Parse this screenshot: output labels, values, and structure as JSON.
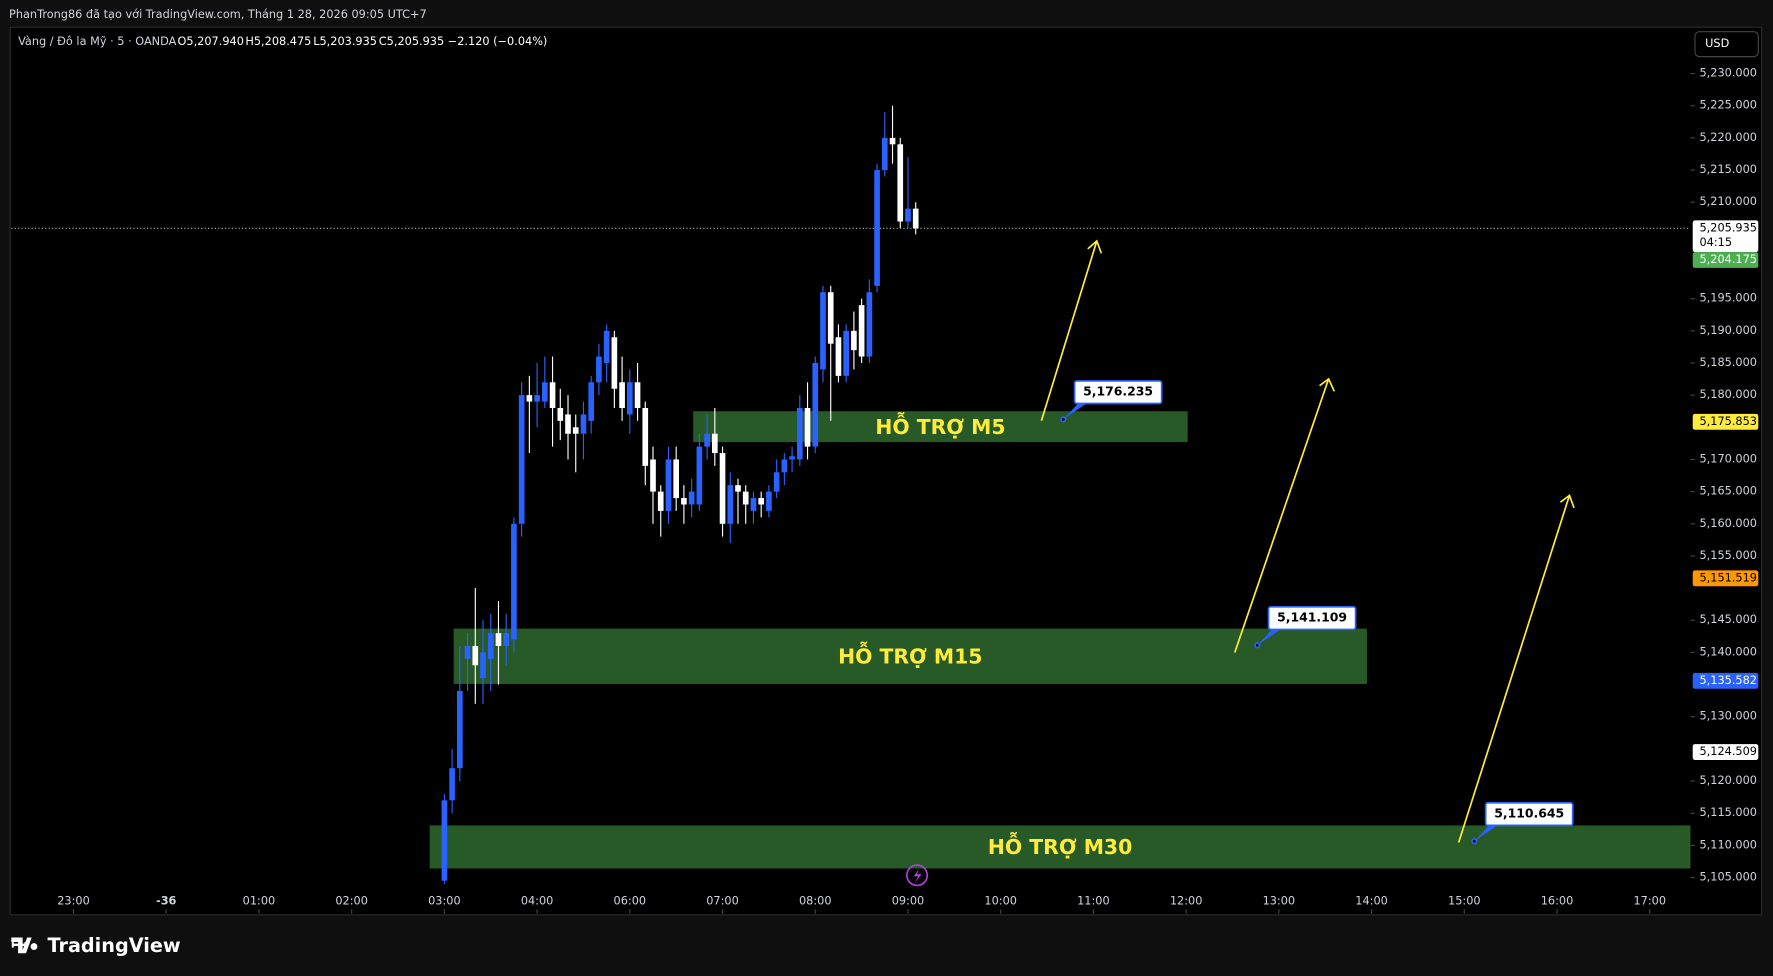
{
  "header": {
    "credit": "PhanTrong86 đã tạo với TradingView.com, Tháng 1 28, 2026 09:05 UTC+7",
    "symbol": "Vàng / Đô la Mỹ · 5 · OANDA",
    "open": "O5,207.940",
    "high": "H5,208.475",
    "low": "L5,203.935",
    "close": "C5,205.935",
    "change": "−2.120 (−0.04%)",
    "currency": "USD",
    "brand": "TradingView"
  },
  "chart_data": {
    "type": "candlestick",
    "x": [
      0,
      1,
      2,
      3,
      4,
      5,
      6,
      7,
      8,
      9,
      10,
      11,
      12,
      13,
      14,
      15,
      16,
      17,
      18,
      19,
      20,
      21,
      22,
      23,
      24,
      25,
      26,
      27,
      28,
      29,
      30,
      31,
      32,
      33,
      34,
      35,
      36,
      37,
      38,
      39,
      40,
      41,
      42,
      43,
      44,
      45,
      46,
      47,
      48,
      49,
      50,
      51,
      52,
      53,
      54,
      55,
      56,
      57,
      58,
      59,
      60,
      61
    ],
    "open": [
      5104.5,
      5117,
      5122,
      5139,
      5141,
      5136,
      5139,
      5143,
      5141,
      5142,
      5160,
      5180,
      5179,
      5179,
      5182,
      5178,
      5177,
      5175,
      5174,
      5176,
      5182,
      5185,
      5189,
      5182,
      5177,
      5182,
      5178,
      5170,
      5165,
      5162,
      5170,
      5164,
      5163,
      5163,
      5172,
      5174,
      5171,
      5160,
      5166,
      5165,
      5162,
      5164,
      5162,
      5165,
      5168,
      5170,
      5170,
      5178,
      5172,
      5184,
      5196,
      5189,
      5183,
      5190,
      5194,
      5186,
      5197,
      5215,
      5220,
      5219,
      5207,
      5209
    ],
    "high": [
      5118,
      5125,
      5141,
      5143,
      5150,
      5145,
      5146,
      5148,
      5146,
      5161,
      5182,
      5183,
      5185,
      5186,
      5186,
      5181,
      5180,
      5177,
      5179,
      5183,
      5188,
      5191,
      5190,
      5186,
      5184,
      5185,
      5179,
      5172,
      5166,
      5172,
      5172,
      5166,
      5167,
      5174,
      5177,
      5178,
      5172,
      5168,
      5167,
      5166,
      5165,
      5165,
      5166,
      5170,
      5171,
      5172,
      5180,
      5182,
      5186,
      5197,
      5197,
      5191,
      5191,
      5193,
      5195,
      5198,
      5216,
      5224,
      5225,
      5220,
      5217,
      5210
    ],
    "low": [
      5104,
      5115,
      5120,
      5134,
      5132,
      5132,
      5134,
      5135,
      5138,
      5140,
      5158,
      5171,
      5175,
      5178,
      5172,
      5173,
      5170,
      5168,
      5170,
      5174,
      5180,
      5182,
      5178,
      5176,
      5174,
      5176,
      5166,
      5160,
      5158,
      5160,
      5162,
      5160,
      5161,
      5162,
      5170,
      5169,
      5158,
      5157,
      5160,
      5160,
      5160,
      5161,
      5161,
      5164,
      5166,
      5168,
      5169,
      5170,
      5171,
      5182,
      5176,
      5182,
      5182,
      5184,
      5185,
      5185,
      5196,
      5214,
      5216,
      5206,
      5206,
      5205
    ],
    "close": [
      5117,
      5122,
      5134,
      5141,
      5138,
      5140,
      5143,
      5141,
      5143,
      5160,
      5180,
      5179,
      5180,
      5182,
      5178,
      5176,
      5174,
      5174,
      5177,
      5182,
      5186,
      5190,
      5181,
      5178,
      5182,
      5178,
      5169,
      5165,
      5162,
      5170,
      5164,
      5163,
      5165,
      5172,
      5174,
      5171,
      5160,
      5166,
      5165,
      5163,
      5164,
      5163,
      5165,
      5168,
      5170,
      5170.5,
      5178,
      5172,
      5185,
      5196,
      5188,
      5183,
      5190,
      5187,
      5186,
      5196,
      5215,
      5220,
      5219,
      5207,
      5209,
      5205.935
    ],
    "up_color": "#2962ff",
    "down_color": "#ffffff",
    "xlim": [
      -56.05,
      161.27
    ],
    "xticks": [
      {
        "value": -48,
        "label": "23:00"
      },
      -36,
      {
        "value": -24,
        "label": "01:00"
      },
      {
        "value": -12,
        "label": "02:00"
      },
      {
        "value": 0,
        "label": "03:00"
      },
      {
        "value": 12,
        "label": "04:00"
      },
      {
        "value": 24,
        "label": "06:00"
      },
      {
        "value": 36,
        "label": "07:00"
      },
      {
        "value": 48,
        "label": "08:00"
      },
      {
        "value": 60,
        "label": "09:00"
      },
      {
        "value": 72,
        "label": "10:00"
      },
      {
        "value": 84,
        "label": "11:00"
      },
      {
        "value": 96,
        "label": "12:00"
      },
      {
        "value": 108,
        "label": "13:00"
      },
      {
        "value": 120,
        "label": "14:00"
      },
      {
        "value": 132,
        "label": "15:00"
      },
      {
        "value": 144,
        "label": "16:00"
      },
      {
        "value": 156,
        "label": "17:00"
      }
    ],
    "ylim": [
      5099.37,
      5237.03
    ],
    "yticks": [
      {
        "value": 5230,
        "label": "5,230.000"
      },
      {
        "value": 5225,
        "label": "5,225.000"
      },
      {
        "value": 5220,
        "label": "5,220.000"
      },
      {
        "value": 5215,
        "label": "5,215.000"
      },
      {
        "value": 5210,
        "label": "5,210.000"
      },
      {
        "value": 5195,
        "label": "5,195.000"
      },
      {
        "value": 5190,
        "label": "5,190.000"
      },
      {
        "value": 5185,
        "label": "5,185.000"
      },
      {
        "value": 5180,
        "label": "5,180.000"
      },
      {
        "value": 5170,
        "label": "5,170.000"
      },
      {
        "value": 5165,
        "label": "5,165.000"
      },
      {
        "value": 5160,
        "label": "5,160.000"
      },
      {
        "value": 5155,
        "label": "5,155.000"
      },
      {
        "value": 5145,
        "label": "5,145.000"
      },
      {
        "value": 5140,
        "label": "5,140.000"
      },
      {
        "value": 5130,
        "label": "5,130.000"
      },
      {
        "value": 5120,
        "label": "5,120.000"
      },
      {
        "value": 5115,
        "label": "5,115.000"
      },
      {
        "value": 5110,
        "label": "5,110.000"
      },
      {
        "value": 5105,
        "label": "5,105.000"
      }
    ],
    "price_tags": [
      {
        "value": 5205.935,
        "label": "5,205.935",
        "sub": "04:15",
        "color": "#ffffff",
        "text_color": "#000000"
      },
      {
        "value": 5204.175,
        "label": "5,204.175",
        "color": "#4caf50",
        "text_color": "#ffffff"
      },
      {
        "value": 5175.853,
        "label": "5,175.853",
        "color": "#ffeb3b",
        "text_color": "#000000"
      },
      {
        "value": 5151.519,
        "label": "5,151.519",
        "color": "#ff9800",
        "text_color": "#000000"
      },
      {
        "value": 5135.582,
        "label": "5,135.582",
        "color": "#2962ff",
        "text_color": "#ffffff"
      },
      {
        "value": 5124.509,
        "label": "5,124.509",
        "color": "#ffffff",
        "text_color": "#000000"
      }
    ],
    "zones": [
      {
        "label": "HỖ TRỢ M5",
        "top": 5177.5,
        "bottom": 5172.7,
        "x0": 32.2,
        "x1": 96.2,
        "color": "#275a27"
      },
      {
        "label": "HỖ TRỢ M15",
        "top": 5143.7,
        "bottom": 5135.1,
        "x0": 1.2,
        "x1": 119.4,
        "color": "#275a27"
      },
      {
        "label": "HỖ TRỢ M30",
        "top": 5113.1,
        "bottom": 5106.4,
        "x0": -1.9,
        "x1": 161.27,
        "color": "#275a27"
      }
    ],
    "annotations": [
      {
        "value": 5176.235,
        "label": "5,176.235",
        "x": 80.1
      },
      {
        "value": 5141.109,
        "label": "5,141.109",
        "x": 105.2
      },
      {
        "value": 5110.645,
        "label": "5,110.645",
        "x": 133.3
      }
    ]
  }
}
